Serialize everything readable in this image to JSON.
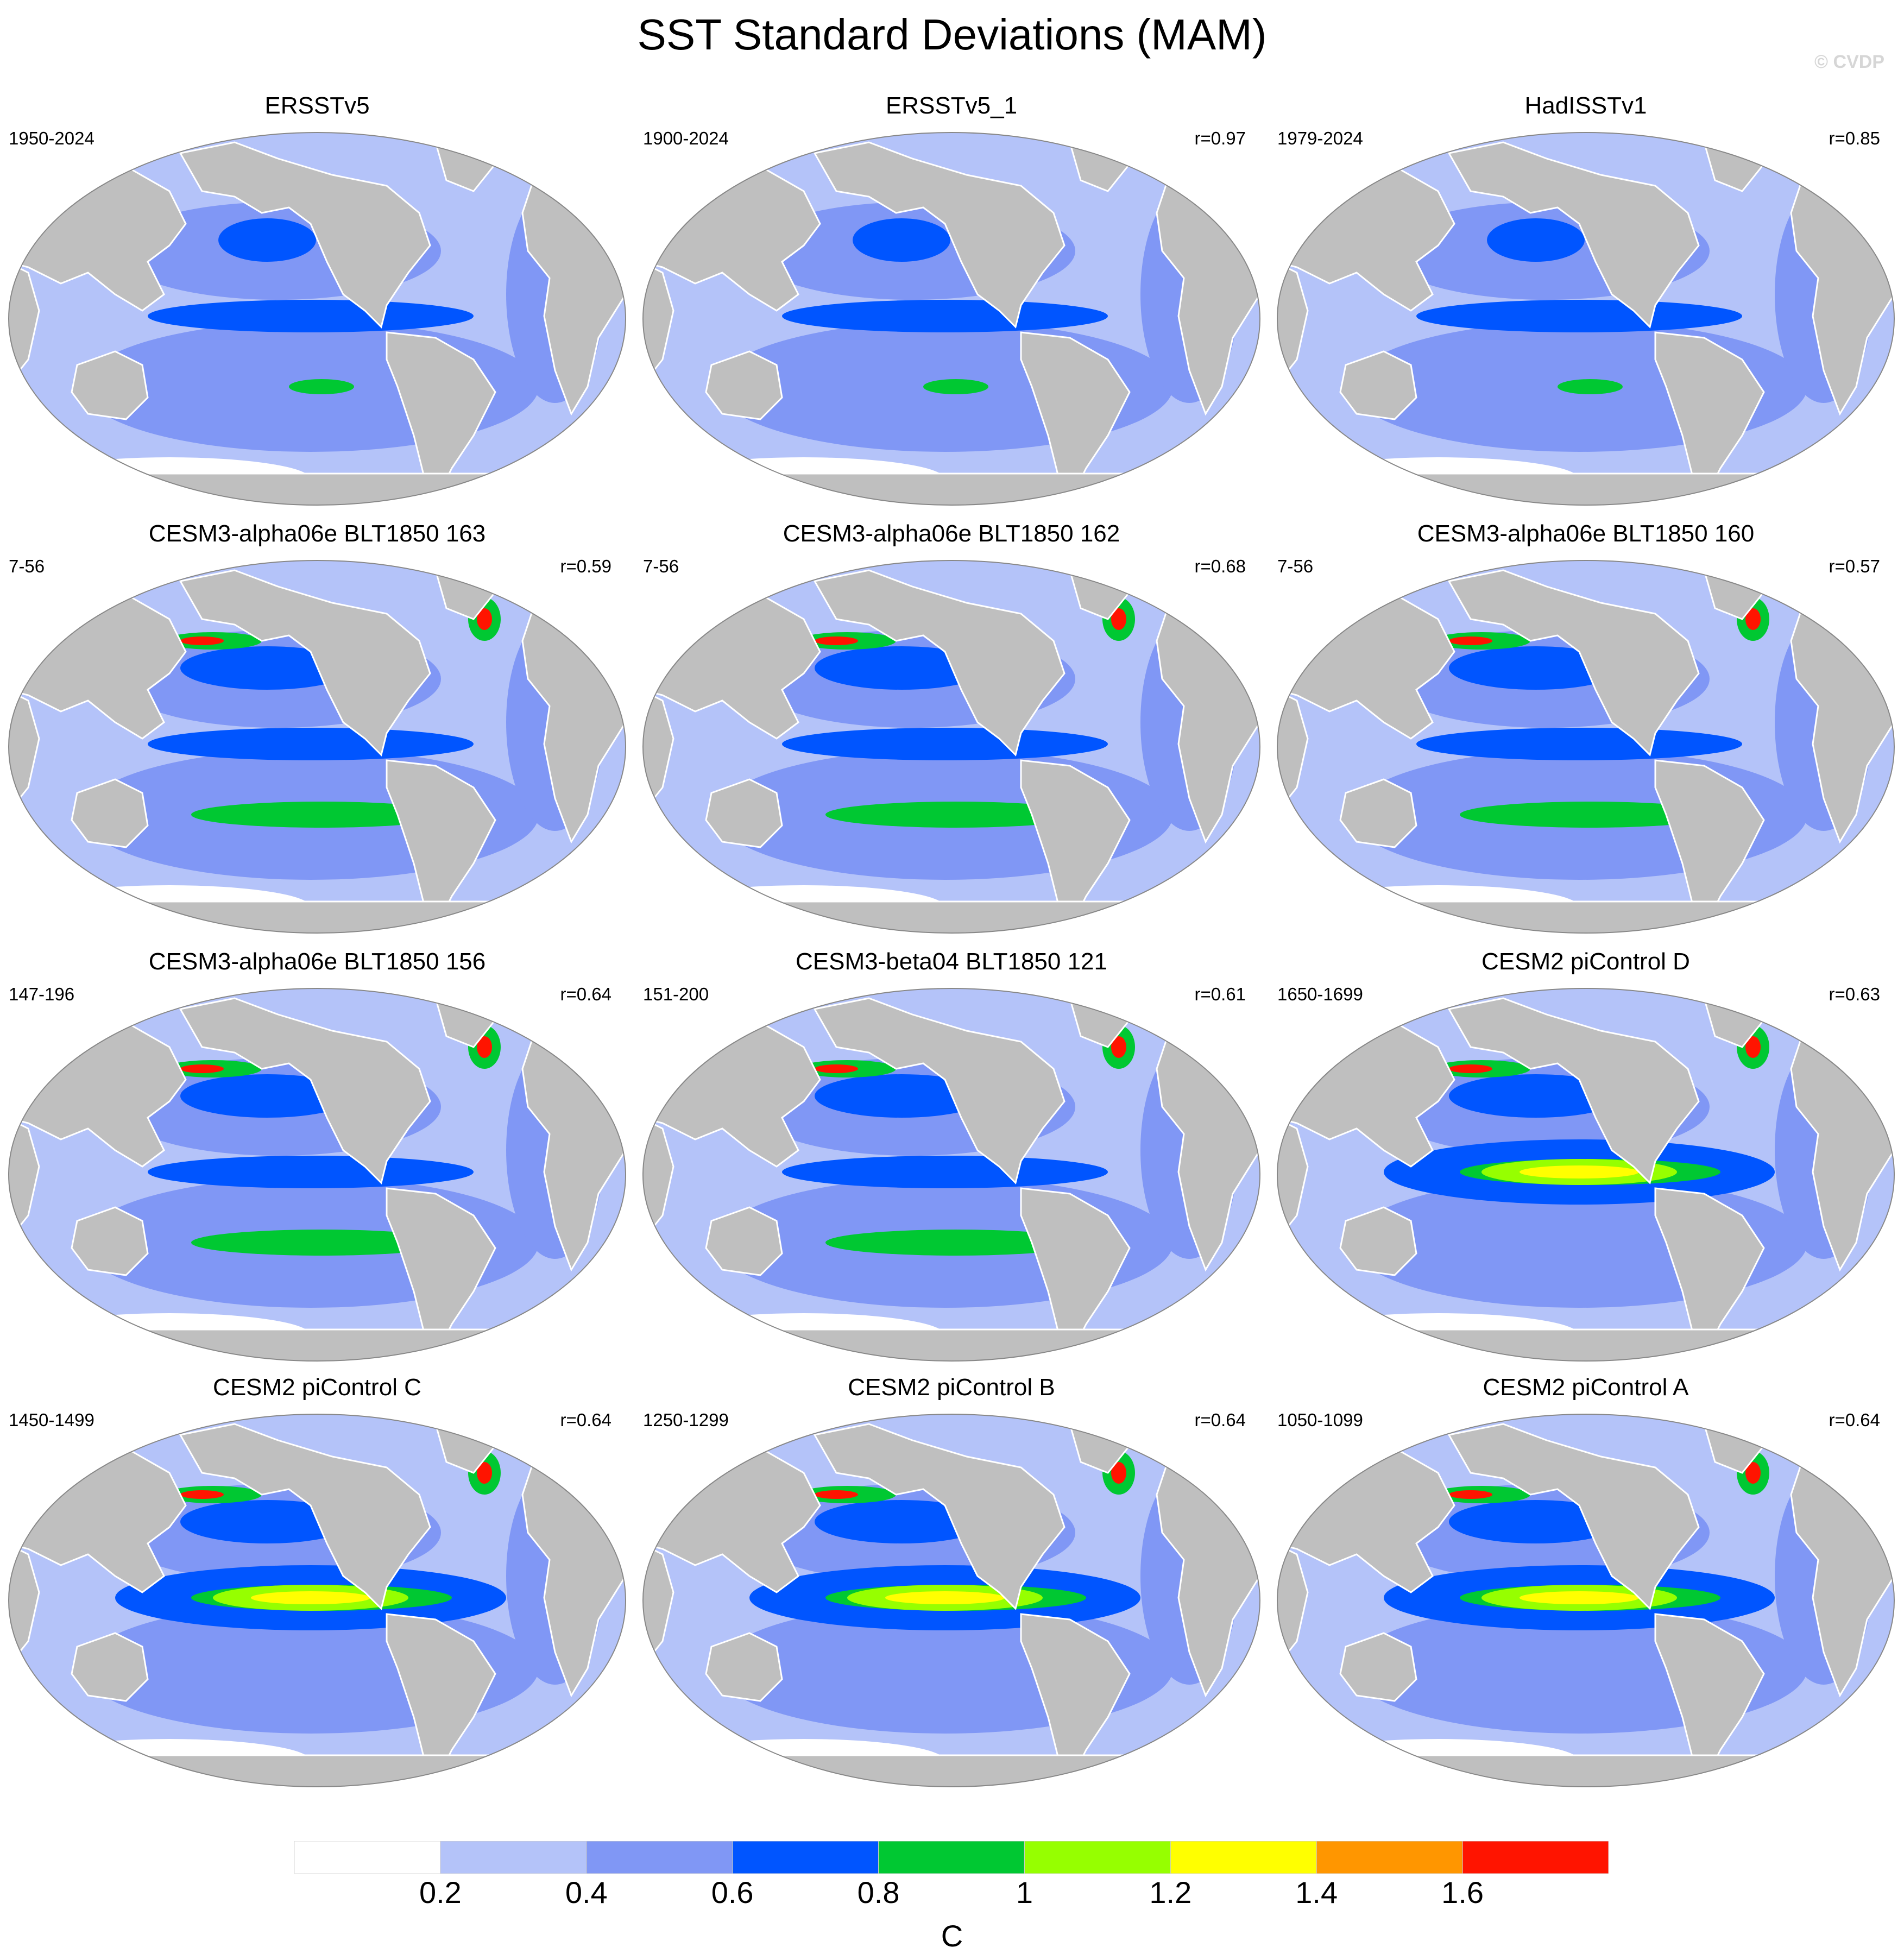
{
  "title": "SST Standard Deviations (MAM)",
  "watermark": "© CVDP",
  "colorbar": {
    "unit": "C",
    "tick_labels": [
      "0.2",
      "0.4",
      "0.6",
      "0.8",
      "1",
      "1.2",
      "1.4",
      "1.6"
    ],
    "colors": [
      "#ffffff",
      "#b4c3f9",
      "#8097f5",
      "#0055ff",
      "#00c832",
      "#96ff00",
      "#ffff00",
      "#ff9600",
      "#ff1400"
    ]
  },
  "colors": {
    "land": "#bfbfbf",
    "ocean_low": "#b4c3f9",
    "ocean_mid": "#8097f5",
    "ocean_high": "#0055ff"
  },
  "panels": [
    {
      "title": "ERSSTv5",
      "period": "1950-2024",
      "corr": ""
    },
    {
      "title": "ERSSTv5_1",
      "period": "1900-2024",
      "corr": "r=0.97"
    },
    {
      "title": "HadISSTv1",
      "period": "1979-2024",
      "corr": "r=0.85"
    },
    {
      "title": "CESM3-alpha06e BLT1850 163",
      "period": "7-56",
      "corr": "r=0.59"
    },
    {
      "title": "CESM3-alpha06e BLT1850 162",
      "period": "7-56",
      "corr": "r=0.68"
    },
    {
      "title": "CESM3-alpha06e BLT1850 160",
      "period": "7-56",
      "corr": "r=0.57"
    },
    {
      "title": "CESM3-alpha06e BLT1850 156",
      "period": "147-196",
      "corr": "r=0.64"
    },
    {
      "title": "CESM3-beta04 BLT1850 121",
      "period": "151-200",
      "corr": "r=0.61"
    },
    {
      "title": "CESM2 piControl D",
      "period": "1650-1699",
      "corr": "r=0.63"
    },
    {
      "title": "CESM2 piControl C",
      "period": "1450-1499",
      "corr": "r=0.64"
    },
    {
      "title": "CESM2 piControl B",
      "period": "1250-1299",
      "corr": "r=0.64"
    },
    {
      "title": "CESM2 piControl A",
      "period": "1050-1099",
      "corr": "r=0.64"
    }
  ]
}
